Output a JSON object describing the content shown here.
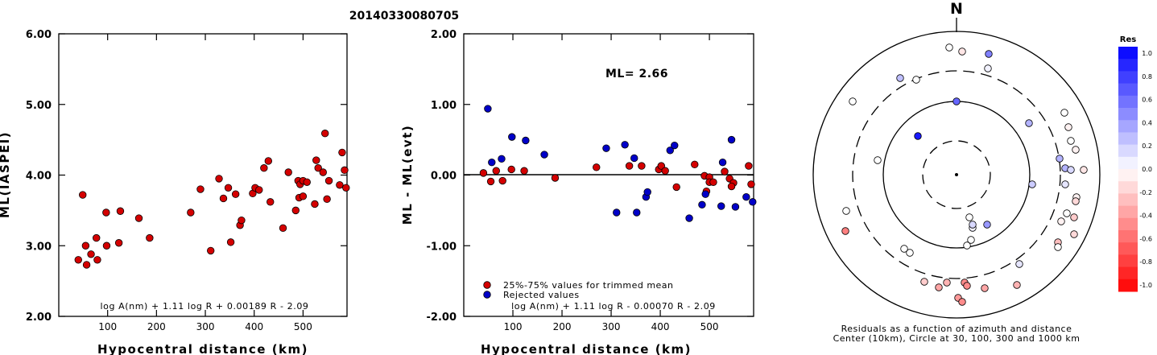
{
  "figure_title": "20140330080705",
  "chart_data": [
    {
      "type": "scatter",
      "id": "ml-vs-distance",
      "xlabel": "Hypocentral distance (km)",
      "ylabel": "ML(IASPEI)",
      "xlim": [
        0,
        590
      ],
      "ylim": [
        2.0,
        6.0
      ],
      "xticks": [
        100,
        200,
        300,
        400,
        500
      ],
      "yticks": [
        2.0,
        3.0,
        4.0,
        5.0,
        6.0
      ],
      "ytick_labels": [
        "2.00",
        "3.00",
        "4.00",
        "5.00",
        "6.00"
      ],
      "formula": "log A(nm) + 1.11 log R + 0.00189 R - 2.09",
      "series": [
        {
          "color": "#d40000",
          "points": [
            [
              40,
              2.8
            ],
            [
              49,
              3.72
            ],
            [
              55,
              3.0
            ],
            [
              57,
              2.73
            ],
            [
              66,
              2.88
            ],
            [
              77,
              3.11
            ],
            [
              79,
              2.8
            ],
            [
              97,
              3.47
            ],
            [
              98,
              3.0
            ],
            [
              123,
              3.04
            ],
            [
              126,
              3.49
            ],
            [
              164,
              3.39
            ],
            [
              186,
              3.11
            ],
            [
              270,
              3.47
            ],
            [
              290,
              3.8
            ],
            [
              311,
              2.93
            ],
            [
              328,
              3.95
            ],
            [
              337,
              3.67
            ],
            [
              347,
              3.82
            ],
            [
              352,
              3.05
            ],
            [
              362,
              3.73
            ],
            [
              371,
              3.29
            ],
            [
              374,
              3.36
            ],
            [
              397,
              3.74
            ],
            [
              402,
              3.82
            ],
            [
              410,
              3.79
            ],
            [
              420,
              4.1
            ],
            [
              429,
              4.2
            ],
            [
              433,
              3.62
            ],
            [
              459,
              3.25
            ],
            [
              470,
              4.04
            ],
            [
              485,
              3.5
            ],
            [
              490,
              3.92
            ],
            [
              492,
              3.68
            ],
            [
              494,
              3.87
            ],
            [
              500,
              3.7
            ],
            [
              500,
              3.92
            ],
            [
              508,
              3.9
            ],
            [
              524,
              3.59
            ],
            [
              527,
              4.21
            ],
            [
              531,
              4.1
            ],
            [
              541,
              4.04
            ],
            [
              545,
              4.59
            ],
            [
              549,
              3.66
            ],
            [
              553,
              3.92
            ],
            [
              575,
              3.86
            ],
            [
              580,
              4.32
            ],
            [
              585,
              4.07
            ],
            [
              588,
              3.82
            ]
          ]
        }
      ]
    },
    {
      "type": "scatter",
      "id": "residual-vs-distance",
      "xlabel": "Hypocentral distance (km)",
      "ylabel": "ML - ML(evt)",
      "xlim": [
        0,
        590
      ],
      "ylim": [
        -2.0,
        2.0
      ],
      "xticks": [
        100,
        200,
        300,
        400,
        500
      ],
      "yticks": [
        -2.0,
        -1.0,
        0.0,
        1.0,
        2.0
      ],
      "ytick_labels": [
        "-2.00",
        "-1.00",
        "0.00",
        "1.00",
        "2.00"
      ],
      "annotation": "ML= 2.66",
      "formula": "log A(nm) + 1.11 log R - 0.00070 R - 2.09",
      "series": [
        {
          "name": "25%-75% values for trimmed mean",
          "color": "#d40000",
          "points": [
            [
              40,
              0.03
            ],
            [
              55,
              -0.09
            ],
            [
              66,
              0.06
            ],
            [
              79,
              -0.08
            ],
            [
              97,
              0.08
            ],
            [
              123,
              0.06
            ],
            [
              186,
              -0.04
            ],
            [
              270,
              0.11
            ],
            [
              337,
              0.13
            ],
            [
              362,
              0.13
            ],
            [
              397,
              0.08
            ],
            [
              402,
              0.13
            ],
            [
              410,
              0.06
            ],
            [
              433,
              -0.17
            ],
            [
              470,
              0.15
            ],
            [
              490,
              -0.01
            ],
            [
              494,
              -0.23
            ],
            [
              500,
              -0.03
            ],
            [
              500,
              -0.1
            ],
            [
              508,
              -0.1
            ],
            [
              531,
              0.05
            ],
            [
              541,
              -0.05
            ],
            [
              549,
              -0.11
            ],
            [
              545,
              -0.16
            ],
            [
              580,
              0.13
            ],
            [
              585,
              -0.13
            ]
          ]
        },
        {
          "name": "Rejected values",
          "color": "#0000c8",
          "points": [
            [
              49,
              0.94
            ],
            [
              57,
              0.18
            ],
            [
              77,
              0.23
            ],
            [
              98,
              0.54
            ],
            [
              126,
              0.49
            ],
            [
              164,
              0.29
            ],
            [
              290,
              0.38
            ],
            [
              311,
              -0.53
            ],
            [
              328,
              0.43
            ],
            [
              347,
              0.24
            ],
            [
              352,
              -0.53
            ],
            [
              371,
              -0.31
            ],
            [
              374,
              -0.24
            ],
            [
              420,
              0.35
            ],
            [
              429,
              0.42
            ],
            [
              459,
              -0.61
            ],
            [
              485,
              -0.42
            ],
            [
              492,
              -0.27
            ],
            [
              524,
              -0.44
            ],
            [
              527,
              0.18
            ],
            [
              545,
              0.5
            ],
            [
              553,
              -0.45
            ],
            [
              575,
              -0.31
            ],
            [
              588,
              -0.38
            ]
          ]
        }
      ]
    },
    {
      "type": "scatter",
      "id": "azimuth-residual-map",
      "north_label": "N",
      "caption_line1": "Residuals as a function of azimuth and distance",
      "caption_line2": "Center (10km), Circle at 30, 100, 300 and 1000 km",
      "colorbar_title": "Res",
      "colorbar_ticks": [
        "1.0",
        "0.8",
        "0.6",
        "0.4",
        "0.2",
        "0.0",
        "-0.2",
        "-0.4",
        "-0.6",
        "-0.8",
        "-1.0"
      ],
      "rings_km": [
        30,
        100,
        300,
        1000
      ],
      "stations": [
        {
          "dx": -9,
          "dy": -158,
          "res": 0.0
        },
        {
          "dx": 7,
          "dy": -153,
          "res": -0.1
        },
        {
          "dx": 40,
          "dy": -150,
          "res": 0.5
        },
        {
          "dx": 39,
          "dy": -132,
          "res": 0.05
        },
        {
          "dx": -70,
          "dy": -120,
          "res": 0.25
        },
        {
          "dx": -50,
          "dy": -118,
          "res": 0.0
        },
        {
          "dx": 0,
          "dy": -91,
          "res": 0.6
        },
        {
          "dx": -129,
          "dy": -91,
          "res": 0.0
        },
        {
          "dx": 134,
          "dy": -77,
          "res": 0.0
        },
        {
          "dx": 139,
          "dy": -59,
          "res": -0.05
        },
        {
          "dx": 90,
          "dy": -64,
          "res": 0.3
        },
        {
          "dx": -48,
          "dy": -48,
          "res": 0.9
        },
        {
          "dx": 142,
          "dy": -42,
          "res": 0.0
        },
        {
          "dx": 148,
          "dy": -31,
          "res": -0.05
        },
        {
          "dx": 128,
          "dy": -20,
          "res": 0.3
        },
        {
          "dx": 135,
          "dy": -8,
          "res": 0.3
        },
        {
          "dx": 142,
          "dy": -6,
          "res": 0.15
        },
        {
          "dx": 158,
          "dy": -6,
          "res": -0.1
        },
        {
          "dx": -98,
          "dy": -18,
          "res": 0.0
        },
        {
          "dx": 94,
          "dy": 12,
          "res": 0.2
        },
        {
          "dx": 135,
          "dy": 12,
          "res": 0.1
        },
        {
          "dx": 149,
          "dy": 28,
          "res": -0.05
        },
        {
          "dx": 148,
          "dy": 33,
          "res": -0.15
        },
        {
          "dx": 137,
          "dy": 48,
          "res": 0.0
        },
        {
          "dx": 130,
          "dy": 58,
          "res": -0.05
        },
        {
          "dx": 146,
          "dy": 53,
          "res": -0.2
        },
        {
          "dx": 146,
          "dy": 74,
          "res": -0.15
        },
        {
          "dx": 126,
          "dy": 84,
          "res": -0.25
        },
        {
          "dx": 126,
          "dy": 90,
          "res": 0.0
        },
        {
          "dx": -137,
          "dy": 45,
          "res": 0.0
        },
        {
          "dx": -138,
          "dy": 70,
          "res": -0.5
        },
        {
          "dx": -65,
          "dy": 92,
          "res": 0.0
        },
        {
          "dx": -58,
          "dy": 97,
          "res": 0.0
        },
        {
          "dx": 16,
          "dy": 53,
          "res": 0.0
        },
        {
          "dx": 20,
          "dy": 66,
          "res": 0.05
        },
        {
          "dx": 20,
          "dy": 62,
          "res": 0.15
        },
        {
          "dx": 38,
          "dy": 62,
          "res": 0.4
        },
        {
          "dx": 18,
          "dy": 81,
          "res": 0.0
        },
        {
          "dx": 13,
          "dy": 88,
          "res": 0.0
        },
        {
          "dx": 78,
          "dy": 111,
          "res": 0.1
        },
        {
          "dx": -40,
          "dy": 133,
          "res": -0.2
        },
        {
          "dx": -12,
          "dy": 134,
          "res": -0.3
        },
        {
          "dx": 10,
          "dy": 134,
          "res": -0.45
        },
        {
          "dx": 13,
          "dy": 138,
          "res": -0.45
        },
        {
          "dx": 35,
          "dy": 141,
          "res": -0.35
        },
        {
          "dx": 75,
          "dy": 137,
          "res": -0.3
        },
        {
          "dx": -22,
          "dy": 140,
          "res": -0.35
        },
        {
          "dx": 2,
          "dy": 153,
          "res": -0.4
        },
        {
          "dx": 7,
          "dy": 158,
          "res": -0.45
        }
      ]
    }
  ]
}
